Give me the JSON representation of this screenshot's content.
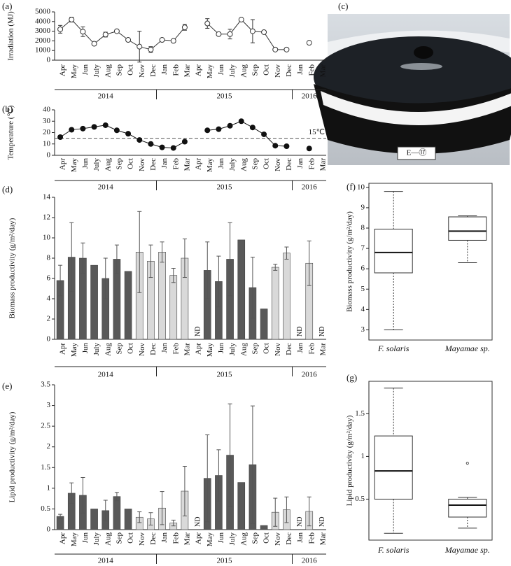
{
  "chart_data": [
    {
      "type": "line",
      "panel_label": "(a)",
      "y_label": "Irradiation (MJ)",
      "categories": [
        "Apr",
        "May",
        "Jun",
        "July",
        "Aug",
        "Sep",
        "Oct",
        "Nov",
        "Dec",
        "Jan",
        "Feb",
        "Mar",
        "Apr",
        "May",
        "Jun",
        "July",
        "Aug",
        "Sep",
        "Oct",
        "Nov",
        "Dec",
        "Jan",
        "Feb",
        "Mar"
      ],
      "groups": [
        {
          "label": "2014",
          "count": 9
        },
        {
          "label": "2015",
          "count": 12
        },
        {
          "label": "2016",
          "count": 3
        }
      ],
      "values": [
        3200,
        4200,
        2950,
        1700,
        2650,
        3000,
        2100,
        1400,
        1100,
        2100,
        2000,
        3400,
        null,
        3800,
        2700,
        2700,
        4200,
        3000,
        2900,
        1100,
        1100,
        null,
        1800,
        null
      ],
      "errors": [
        400,
        250,
        500,
        null,
        250,
        null,
        null,
        1600,
        300,
        null,
        null,
        300,
        null,
        500,
        null,
        500,
        null,
        1200,
        null,
        null,
        null,
        null,
        null,
        null
      ],
      "marker": "open",
      "color": "#333333",
      "ylim": [
        0,
        5000
      ],
      "yticks": [
        0,
        1000,
        2000,
        3000,
        4000,
        5000
      ]
    },
    {
      "type": "line",
      "panel_label": "(b)",
      "y_label": "Temperature (℃)",
      "categories": [
        "Apr",
        "May",
        "Jun",
        "July",
        "Aug",
        "Sep",
        "Oct",
        "Nov",
        "Dec",
        "Jan",
        "Feb",
        "Mar",
        "Apr",
        "May",
        "Jun",
        "July",
        "Aug",
        "Sep",
        "Oct",
        "Nov",
        "Dec",
        "Jan",
        "Feb",
        "Mar"
      ],
      "groups": [
        {
          "label": "2014",
          "count": 9
        },
        {
          "label": "2015",
          "count": 12
        },
        {
          "label": "2016",
          "count": 3
        }
      ],
      "values": [
        16,
        22.5,
        23.5,
        25,
        26.5,
        22,
        19,
        13.5,
        10,
        7,
        6.5,
        12,
        null,
        22,
        23,
        26,
        30,
        24.5,
        18.5,
        8.5,
        8,
        null,
        6,
        null
      ],
      "errors": [
        1.5,
        1.5,
        null,
        null,
        1,
        null,
        null,
        null,
        null,
        null,
        null,
        1.5,
        null,
        null,
        null,
        null,
        null,
        null,
        null,
        null,
        null,
        null,
        null,
        null
      ],
      "marker": "filled",
      "color": "#111111",
      "reference_line": {
        "value": 15,
        "label": "15℃"
      },
      "ylim": [
        0,
        40
      ],
      "yticks": [
        0,
        10,
        20,
        30,
        40
      ]
    },
    {
      "type": "image",
      "panel_label": "(c)",
      "image_label": "E—⑰"
    },
    {
      "type": "bar",
      "panel_label": "(d)",
      "y_label": "Biomass productivity (g/m²/day)",
      "categories": [
        "Apr",
        "May",
        "Jun",
        "July",
        "Aug",
        "Sep",
        "Oct",
        "Nov",
        "Dec",
        "Jan",
        "Feb",
        "Mar",
        "Apr",
        "May",
        "Jun",
        "July",
        "Aug",
        "Sep",
        "Oct",
        "Nov",
        "Dec",
        "Jan",
        "Feb",
        "Mar"
      ],
      "groups": [
        {
          "label": "2014",
          "count": 9
        },
        {
          "label": "2015",
          "count": 12
        },
        {
          "label": "2016",
          "count": 3
        }
      ],
      "values": [
        5.8,
        8.1,
        8.0,
        7.3,
        6.0,
        7.9,
        6.7,
        8.6,
        7.7,
        8.6,
        6.3,
        8.0,
        null,
        6.8,
        5.7,
        7.9,
        9.8,
        5.1,
        3.0,
        7.1,
        8.5,
        null,
        7.5,
        null
      ],
      "errors": [
        1.5,
        3.4,
        1.5,
        null,
        2.0,
        1.4,
        null,
        4.0,
        1.6,
        1.0,
        0.7,
        1.9,
        null,
        2.8,
        2.5,
        3.6,
        null,
        3.0,
        null,
        0.3,
        0.6,
        null,
        2.2,
        null
      ],
      "colors": [
        "#595959",
        "#595959",
        "#595959",
        "#595959",
        "#595959",
        "#595959",
        "#595959",
        "#d9d9d9",
        "#d9d9d9",
        "#d9d9d9",
        "#d9d9d9",
        "#d9d9d9",
        null,
        "#595959",
        "#595959",
        "#595959",
        "#595959",
        "#595959",
        "#595959",
        "#d9d9d9",
        "#d9d9d9",
        null,
        "#d9d9d9",
        null
      ],
      "missing_label": "ND",
      "ylim": [
        0,
        14
      ],
      "yticks": [
        0,
        2,
        4,
        6,
        8,
        10,
        12,
        14
      ]
    },
    {
      "type": "bar",
      "panel_label": "(e)",
      "y_label": "Lipid productivity (g/m²/day)",
      "categories": [
        "Apr",
        "May",
        "Jun",
        "July",
        "Aug",
        "Sep",
        "Oct",
        "Nov",
        "Dec",
        "Jan",
        "Feb",
        "Mar",
        "Apr",
        "May",
        "Jun",
        "July",
        "Aug",
        "Sep",
        "Oct",
        "Nov",
        "Dec",
        "Jan",
        "Feb",
        "Mar"
      ],
      "groups": [
        {
          "label": "2014",
          "count": 9
        },
        {
          "label": "2015",
          "count": 12
        },
        {
          "label": "2016",
          "count": 3
        }
      ],
      "values": [
        0.32,
        0.88,
        0.83,
        0.5,
        0.46,
        0.8,
        0.5,
        0.3,
        0.26,
        0.52,
        0.16,
        0.93,
        null,
        1.24,
        1.31,
        1.8,
        1.14,
        1.57,
        0.1,
        0.42,
        0.48,
        null,
        0.44,
        null
      ],
      "errors": [
        0.05,
        0.25,
        0.43,
        null,
        0.25,
        0.1,
        null,
        0.13,
        0.15,
        0.4,
        0.07,
        0.6,
        null,
        1.05,
        0.62,
        1.24,
        null,
        1.42,
        null,
        0.34,
        0.31,
        null,
        0.35,
        null
      ],
      "colors": [
        "#595959",
        "#595959",
        "#595959",
        "#595959",
        "#595959",
        "#595959",
        "#595959",
        "#d9d9d9",
        "#d9d9d9",
        "#d9d9d9",
        "#d9d9d9",
        "#d9d9d9",
        null,
        "#595959",
        "#595959",
        "#595959",
        "#595959",
        "#595959",
        "#595959",
        "#d9d9d9",
        "#d9d9d9",
        null,
        "#d9d9d9",
        null
      ],
      "missing_label": "ND",
      "ylim": [
        0,
        3.5
      ],
      "yticks": [
        0,
        0.5,
        1,
        1.5,
        2,
        2.5,
        3,
        3.5
      ]
    },
    {
      "type": "box",
      "panel_label": "(f)",
      "y_label": "Biomass productivity (g/m²/day)",
      "categories": [
        "F. solaris",
        "Mayamae sp."
      ],
      "boxes": [
        {
          "min": 3.0,
          "q1": 5.8,
          "median": 6.8,
          "q3": 7.95,
          "max": 9.8,
          "outliers": []
        },
        {
          "min": 6.3,
          "q1": 7.4,
          "median": 7.85,
          "q3": 8.55,
          "max": 8.6,
          "outliers": []
        }
      ],
      "ylim": [
        2.5,
        10.2
      ],
      "yticks": [
        3,
        4,
        5,
        6,
        7,
        8,
        9,
        10
      ]
    },
    {
      "type": "box",
      "panel_label": "(g)",
      "y_label": "Lipid productivity (g/m²/day)",
      "categories": [
        "F. solaris",
        "Mayamae sp."
      ],
      "boxes": [
        {
          "min": 0.1,
          "q1": 0.5,
          "median": 0.83,
          "q3": 1.24,
          "max": 1.8,
          "outliers": []
        },
        {
          "min": 0.16,
          "q1": 0.29,
          "median": 0.43,
          "q3": 0.5,
          "max": 0.52,
          "outliers": [
            0.92
          ]
        }
      ],
      "ylim": [
        0.02,
        1.88
      ],
      "yticks": [
        0.5,
        1,
        1.5
      ]
    }
  ]
}
